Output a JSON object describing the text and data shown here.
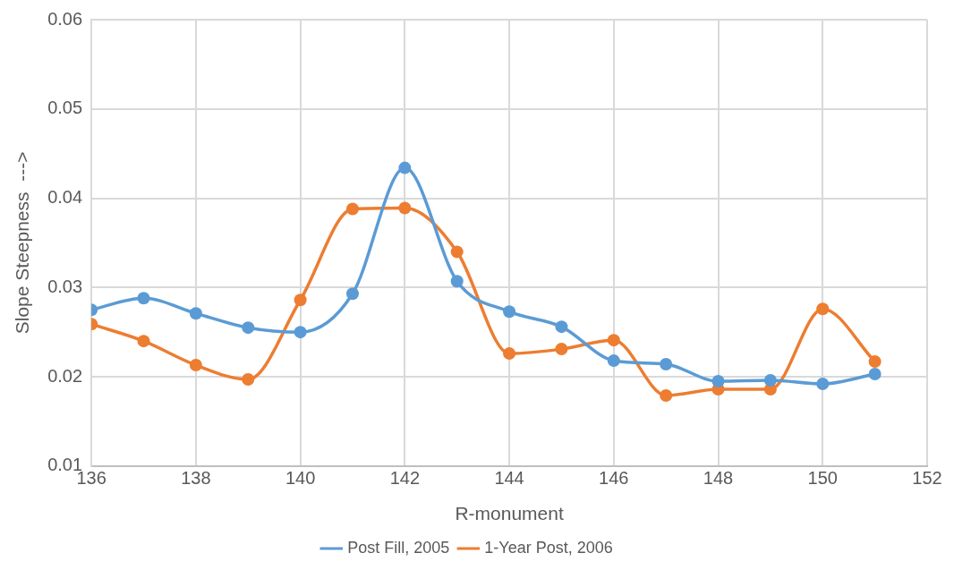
{
  "chart_data": {
    "type": "line",
    "xlabel": "R-monument",
    "ylabel": "Slope Steepness  --->",
    "x": [
      136,
      137,
      138,
      139,
      140,
      141,
      142,
      143,
      144,
      145,
      146,
      147,
      148,
      149,
      150,
      151
    ],
    "series": [
      {
        "name": "Post Fill, 2005",
        "color": "#5b9bd5",
        "values": [
          0.0275,
          0.0288,
          0.0271,
          0.0255,
          0.025,
          0.0293,
          0.0434,
          0.0307,
          0.0273,
          0.0256,
          0.0218,
          0.0214,
          0.0195,
          0.0196,
          0.0192,
          0.0203
        ]
      },
      {
        "name": "1-Year Post, 2006",
        "color": "#ed7d31",
        "values": [
          0.0259,
          0.024,
          0.0213,
          0.0197,
          0.0286,
          0.0388,
          0.0389,
          0.034,
          0.0226,
          0.0231,
          0.0241,
          0.0179,
          0.0186,
          0.0186,
          0.0276,
          0.0217
        ]
      }
    ],
    "xlim": [
      136,
      152
    ],
    "xticks": [
      136,
      138,
      140,
      142,
      144,
      146,
      148,
      150,
      152
    ],
    "ylim": [
      0.01,
      0.06
    ],
    "yticks": [
      0.01,
      0.02,
      0.03,
      0.04,
      0.05,
      0.06
    ],
    "grid": true,
    "legend": "bottom",
    "marker": "circle",
    "line_style": "solid"
  }
}
